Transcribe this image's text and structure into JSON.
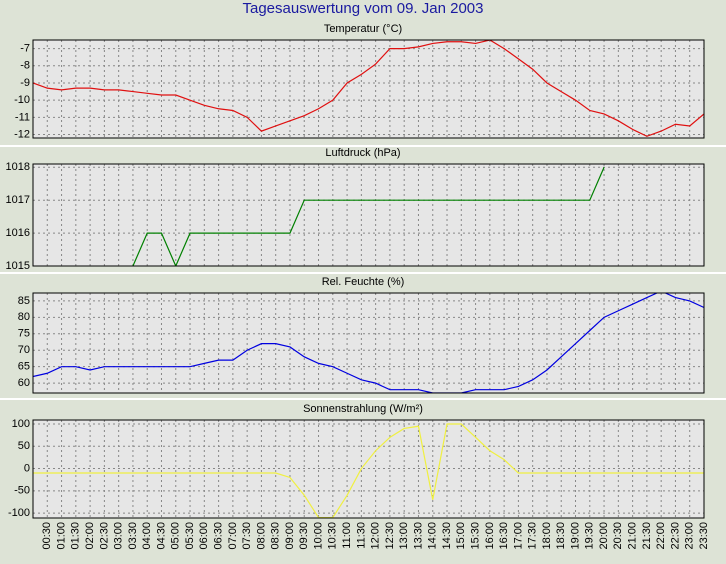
{
  "title": "Tagesauswertung vom 09. Jan 2003",
  "chart_data": [
    {
      "type": "line",
      "title": "Temperatur (°C)",
      "color": "#e01010",
      "values": [
        -9.0,
        -9.3,
        -9.4,
        -9.3,
        -9.3,
        -9.4,
        -9.4,
        -9.5,
        -9.6,
        -9.7,
        -9.7,
        -10.0,
        -10.3,
        -10.5,
        -10.6,
        -11.0,
        -11.8,
        -11.5,
        -11.2,
        -10.9,
        -10.5,
        -10.0,
        -9.0,
        -8.5,
        -7.9,
        -7.0,
        -7.0,
        -6.9,
        -6.7,
        -6.6,
        -6.6,
        -6.7,
        -6.5,
        -7.0,
        -7.6,
        -8.2,
        -9.0,
        -9.5,
        -10.0,
        -10.6,
        -10.8,
        -11.2,
        -11.7,
        -12.1,
        -11.8,
        -11.4,
        -11.5,
        -10.8
      ],
      "ylim": [
        -12.2,
        -6.5
      ],
      "yticks": [
        -12,
        -11,
        -10,
        -9,
        -8,
        -7
      ],
      "grid": true
    },
    {
      "type": "line",
      "title": "Luftdruck (hPa)",
      "color": "#008000",
      "values": [
        null,
        null,
        null,
        null,
        null,
        null,
        null,
        1015,
        1016,
        1016,
        1015,
        1016,
        1016,
        1016,
        1016,
        1016,
        1016,
        1016,
        1016,
        1017,
        1017,
        1017,
        1017,
        1017,
        1017,
        1017,
        1017,
        1017,
        1017,
        1017,
        1017,
        1017,
        1017,
        1017,
        1017,
        1017,
        1017,
        1017,
        1017,
        1017,
        1018,
        null,
        null,
        null,
        null,
        null,
        null,
        null
      ],
      "ylim": [
        1015,
        1018.1
      ],
      "yticks": [
        1015,
        1016,
        1017,
        1018
      ],
      "grid": true
    },
    {
      "type": "line",
      "title": "Rel. Feuchte (%)",
      "color": "#0000e0",
      "values": [
        62,
        63,
        65,
        65,
        64,
        65,
        65,
        65,
        65,
        65,
        65,
        65,
        66,
        67,
        67,
        70,
        72,
        72,
        71,
        68,
        66,
        65,
        63,
        61,
        60,
        58,
        58,
        58,
        57,
        57,
        57,
        58,
        58,
        58,
        59,
        61,
        64,
        68,
        72,
        76,
        80,
        82,
        84,
        86,
        88,
        86,
        85,
        83
      ],
      "ylim": [
        57,
        87.4
      ],
      "yticks": [
        60,
        65,
        70,
        75,
        80,
        85
      ],
      "grid": true
    },
    {
      "type": "line",
      "title": "Sonnenstrahlung (W/m²)",
      "color": "#f0f040",
      "values": [
        -10,
        -10,
        -10,
        -10,
        -10,
        -10,
        -10,
        -10,
        -10,
        -10,
        -10,
        -10,
        -10,
        -10,
        -10,
        -10,
        -10,
        -10,
        -20,
        -60,
        -110,
        -110,
        -60,
        0,
        40,
        70,
        90,
        95,
        -70,
        100,
        100,
        70,
        40,
        20,
        -10,
        -10,
        -10,
        -10,
        -10,
        -10,
        -10,
        -10,
        -10,
        -10,
        -10,
        -10,
        -10,
        -10
      ],
      "ylim": [
        -111,
        109
      ],
      "yticks": [
        -100,
        -50,
        0,
        50,
        100
      ],
      "grid": true,
      "categories": [
        null,
        "00:30",
        "01:00",
        "01:30",
        "02:00",
        "02:30",
        "03:00",
        "03:30",
        "04:00",
        "04:30",
        "05:00",
        "05:30",
        "06:00",
        "06:30",
        "07:00",
        "07:30",
        "08:00",
        "08:30",
        "09:00",
        "09:30",
        "10:00",
        "10:30",
        "11:00",
        "11:30",
        "12:00",
        "12:30",
        "13:00",
        "13:30",
        "14:00",
        "14:30",
        "15:00",
        "15:30",
        "16:00",
        "16:30",
        "17:00",
        "17:30",
        "18:00",
        "18:30",
        "19:00",
        "19:30",
        "20:00",
        "20:30",
        "21:00",
        "21:30",
        "22:00",
        "22:30",
        "23:00",
        "23:30"
      ]
    }
  ]
}
